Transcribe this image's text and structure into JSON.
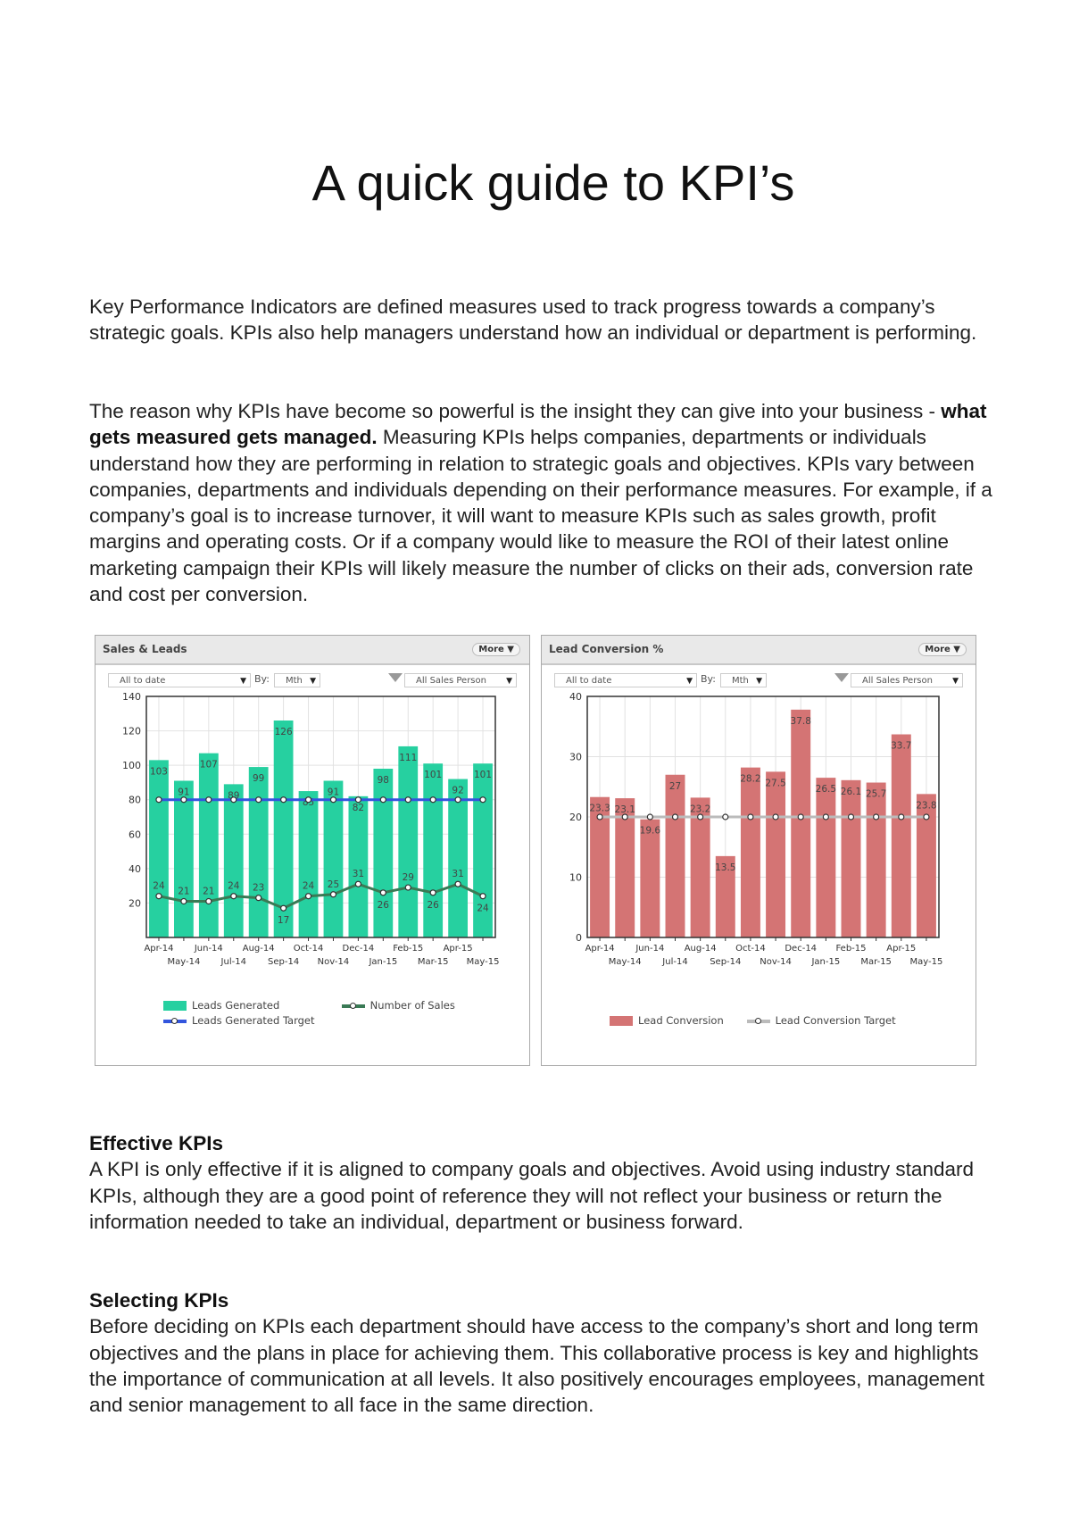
{
  "title": "A quick guide to KPI’s",
  "para1": "Key Performance Indicators are defined measures used to track progress towards a company’s strategic goals. KPIs also help managers understand how an individual or department is performing.",
  "para2_a": "The reason why KPIs have become so powerful is the insight they can give into your business - ",
  "para2_bold": "what gets measured gets managed.",
  "para2_b": " Measuring KPIs helps companies, departments or individuals understand how they are performing in relation to strategic goals and objectives. KPIs vary between companies, departments and individuals depending on their performance measures. For example, if a company’s goal is to increase turnover, it will want to measure KPIs such as sales growth, profit margins and operating costs. Or if a company would like to measure the ROI of their latest online marketing campaign their KPIs will likely measure the number of clicks on their ads, conversion rate and cost per conversion.",
  "section1": {
    "heading": "Effective KPIs",
    "body": "A KPI is only effective if it is aligned to company goals and objectives. Avoid using industry standard KPIs, although they are a good point of reference they will not reflect your business or return the information needed to take an individual, department or business forward."
  },
  "section2": {
    "heading": "Selecting KPIs",
    "body": "Before deciding on KPIs each department should have access to the company’s short and long term objectives and the plans in place for achieving them. This collaborative process is key and highlights the importance of communication at all levels. It also positively encourages employees, management and senior management to all face in the same direction."
  },
  "widgets": [
    {
      "title": "Sales & Leads",
      "more": "More ▼",
      "period": "All to date",
      "by_label": "By:",
      "by": "Mth",
      "filter": "All Sales Person",
      "arrow": "▼",
      "icon": "funnel-icon"
    },
    {
      "title": "Lead Conversion %",
      "more": "More ▼",
      "period": "All to date",
      "by_label": "By:",
      "by": "Mth",
      "filter": "All Sales Person",
      "arrow": "▼",
      "icon": "funnel-icon"
    }
  ],
  "chart_data": [
    {
      "type": "bar",
      "categories": [
        "Apr-14",
        "May-14",
        "Jun-14",
        "Jul-14",
        "Aug-14",
        "Sep-14",
        "Oct-14",
        "Nov-14",
        "Dec-14",
        "Jan-15",
        "Feb-15",
        "Mar-15",
        "Apr-15",
        "May-15"
      ],
      "ylim": [
        0,
        140
      ],
      "yticks": [
        20,
        40,
        60,
        80,
        100,
        120,
        140
      ],
      "grid": true,
      "series": [
        {
          "name": "Leads Generated",
          "kind": "bar",
          "color": "#26d0a0",
          "values": [
            103,
            91,
            107,
            89,
            99,
            126,
            85,
            91,
            82,
            98,
            111,
            101,
            92,
            101
          ]
        },
        {
          "name": "Number of Sales",
          "kind": "line",
          "color": "#3a7a55",
          "values": [
            24,
            21,
            21,
            24,
            23,
            17,
            24,
            25,
            31,
            26,
            29,
            26,
            31,
            24
          ]
        },
        {
          "name": "Leads Generated Target",
          "kind": "line",
          "color": "#3355dd",
          "values": [
            80,
            80,
            80,
            80,
            80,
            80,
            80,
            80,
            80,
            80,
            80,
            80,
            80,
            80
          ]
        }
      ]
    },
    {
      "type": "bar",
      "categories": [
        "Apr-14",
        "May-14",
        "Jun-14",
        "Jul-14",
        "Aug-14",
        "Sep-14",
        "Oct-14",
        "Nov-14",
        "Dec-14",
        "Jan-15",
        "Feb-15",
        "Mar-15",
        "Apr-15",
        "May-15"
      ],
      "ylim": [
        0,
        40
      ],
      "yticks": [
        0,
        10,
        20,
        30,
        40
      ],
      "grid": true,
      "series": [
        {
          "name": "Lead Conversion",
          "kind": "bar",
          "color": "#d47474",
          "values": [
            23.3,
            23.1,
            19.6,
            27,
            23.2,
            13.5,
            28.2,
            27.5,
            37.8,
            26.5,
            26.1,
            25.7,
            33.7,
            23.8
          ]
        },
        {
          "name": "Lead Conversion Target",
          "kind": "line",
          "color": "#bbbbbb",
          "values": [
            20,
            20,
            20,
            20,
            20,
            20,
            20,
            20,
            20,
            20,
            20,
            20,
            20,
            20
          ]
        }
      ]
    }
  ]
}
